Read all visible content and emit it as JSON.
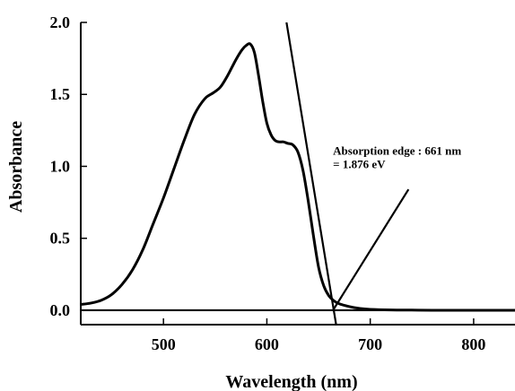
{
  "chart_data": {
    "type": "line",
    "title": "",
    "xlabel": "Wavelength (nm)",
    "ylabel": "Absorbance",
    "xlim": [
      420,
      840
    ],
    "ylim": [
      -0.1,
      2.0
    ],
    "xticks": [
      500,
      600,
      700,
      800
    ],
    "xtick_labels": [
      "500",
      "600",
      "700",
      "800"
    ],
    "yticks": [
      0.0,
      0.5,
      1.0,
      1.5,
      2.0
    ],
    "ytick_labels": [
      "0.0",
      "0.5",
      "1.0",
      "1.5",
      "2.0"
    ],
    "grid": false,
    "series": [
      {
        "x": [
          420,
          430,
          440,
          450,
          460,
          470,
          480,
          490,
          500,
          510,
          520,
          530,
          540,
          548,
          555,
          562,
          570,
          576,
          580,
          584,
          588,
          592,
          596,
          600,
          604,
          608,
          612,
          616,
          620,
          625,
          630,
          635,
          640,
          645,
          650,
          655,
          660,
          665,
          670,
          680,
          690,
          700,
          720,
          740,
          760,
          800,
          840
        ],
        "y": [
          0.04,
          0.05,
          0.07,
          0.11,
          0.18,
          0.28,
          0.42,
          0.6,
          0.78,
          0.98,
          1.18,
          1.36,
          1.47,
          1.51,
          1.55,
          1.63,
          1.74,
          1.81,
          1.84,
          1.85,
          1.79,
          1.63,
          1.45,
          1.3,
          1.22,
          1.18,
          1.17,
          1.17,
          1.16,
          1.15,
          1.1,
          0.97,
          0.76,
          0.52,
          0.3,
          0.17,
          0.1,
          0.065,
          0.045,
          0.025,
          0.012,
          0.006,
          0.002,
          0.001,
          0.0,
          0.0,
          0.0
        ]
      }
    ],
    "reference_lines": [
      {
        "name": "baseline",
        "x": [
          420,
          840
        ],
        "y": [
          0.0,
          0.0
        ]
      },
      {
        "name": "edge-tangent",
        "x": [
          619,
          667
        ],
        "y": [
          2.0,
          -0.1
        ]
      }
    ],
    "annotation": {
      "lines": [
        "Absorption edge : 661 nm",
        "= 1.876 eV"
      ],
      "text_at": [
        664,
        1.08
      ],
      "arrow_from": [
        737,
        0.84
      ],
      "arrow_to": [
        664,
        0.0
      ]
    }
  }
}
